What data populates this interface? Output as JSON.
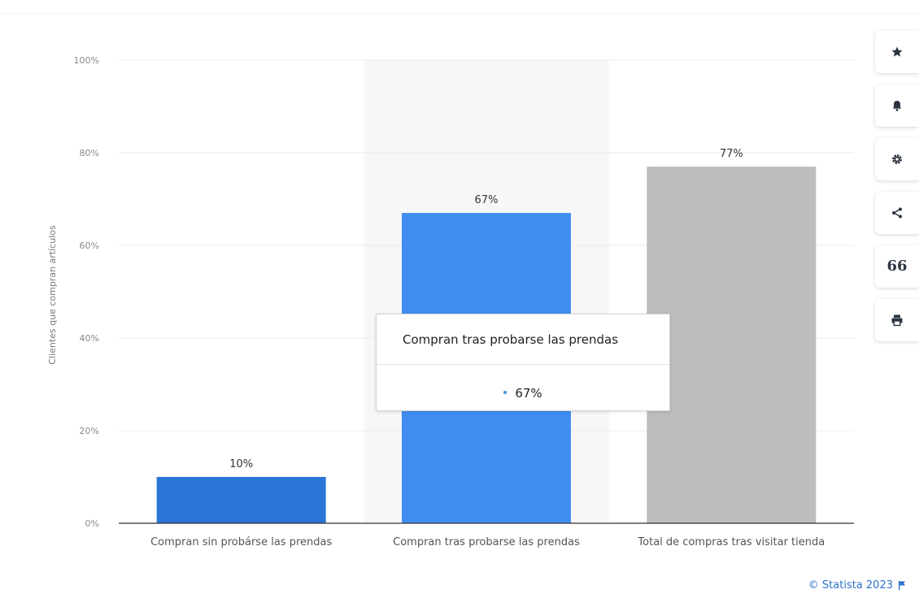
{
  "chart_data": {
    "type": "bar",
    "categories": [
      "Compran sin probárse las prendas",
      "Compran tras probarse las prendas",
      "Total de compras tras visitar tienda"
    ],
    "values": [
      10,
      67,
      77
    ],
    "data_labels": [
      "10%",
      "67%",
      "77%"
    ],
    "bar_colors": [
      "#2a74d6",
      "#3f8ef0",
      "#bdbdbd"
    ],
    "highlighted_category_index": 1,
    "title": "",
    "xlabel": "",
    "ylabel": "Clientes que compran artículos",
    "ylim": [
      0,
      100
    ],
    "yticks": [
      0,
      20,
      40,
      60,
      80,
      100
    ],
    "ytick_labels": [
      "0%",
      "20%",
      "40%",
      "60%",
      "80%",
      "100%"
    ],
    "grid": true,
    "legend": "none"
  },
  "tooltip": {
    "title": "Compran tras probarse las prendas",
    "value": "67%",
    "dot_color": "#4a90e2"
  },
  "toolbar": {
    "buttons": [
      {
        "name": "star-icon"
      },
      {
        "name": "bell-icon"
      },
      {
        "name": "gear-icon"
      },
      {
        "name": "share-icon"
      },
      {
        "name": "quote-icon",
        "glyph": "66"
      },
      {
        "name": "print-icon"
      }
    ]
  },
  "credit": {
    "text": "© Statista 2023",
    "color": "#2b71c8"
  }
}
